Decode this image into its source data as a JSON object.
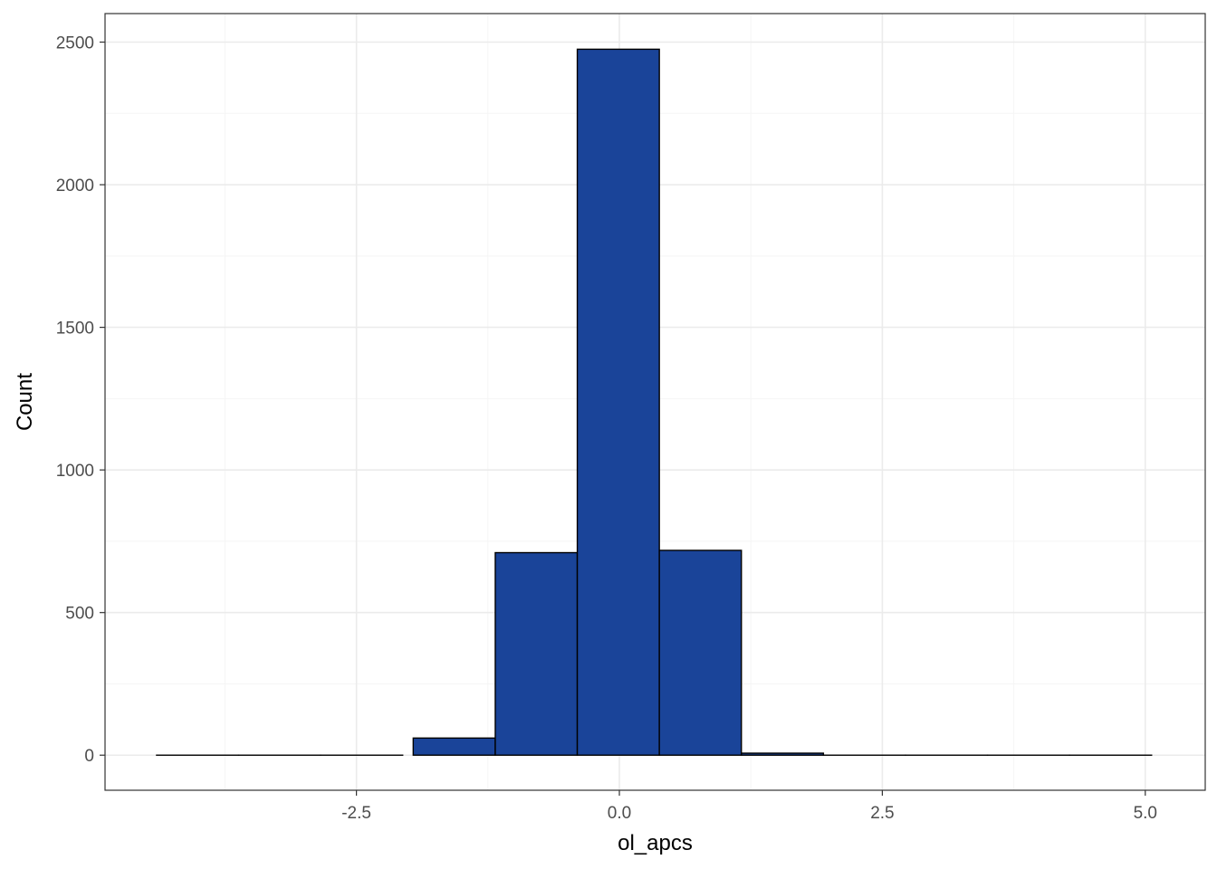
{
  "chart_data": {
    "type": "bar",
    "title": "",
    "xlabel": "ol_apcs",
    "ylabel": "Count",
    "bins": [
      {
        "x_start": -4.4,
        "x_end": -3.62,
        "count": 0
      },
      {
        "x_start": -3.62,
        "x_end": -2.84,
        "count": 0
      },
      {
        "x_start": -2.84,
        "x_end": -2.06,
        "count": 0
      },
      {
        "x_start": -1.96,
        "x_end": -1.18,
        "count": 60
      },
      {
        "x_start": -1.18,
        "x_end": -0.4,
        "count": 710
      },
      {
        "x_start": -0.4,
        "x_end": 0.38,
        "count": 2475
      },
      {
        "x_start": 0.38,
        "x_end": 1.16,
        "count": 718
      },
      {
        "x_start": 1.16,
        "x_end": 1.94,
        "count": 7
      },
      {
        "x_start": 1.94,
        "x_end": 2.72,
        "count": 0
      },
      {
        "x_start": 2.72,
        "x_end": 3.5,
        "count": 0
      },
      {
        "x_start": 3.5,
        "x_end": 4.28,
        "count": 0
      },
      {
        "x_start": 4.28,
        "x_end": 5.06,
        "count": 0
      }
    ],
    "x_ticks": [
      {
        "value": -2.5,
        "label": "-2.5"
      },
      {
        "value": 0.0,
        "label": "0.0"
      },
      {
        "value": 2.5,
        "label": "2.5"
      },
      {
        "value": 5.0,
        "label": "5.0"
      }
    ],
    "y_ticks": [
      {
        "value": 0,
        "label": "0"
      },
      {
        "value": 500,
        "label": "500"
      },
      {
        "value": 1000,
        "label": "1000"
      },
      {
        "value": 1500,
        "label": "1500"
      },
      {
        "value": 2000,
        "label": "2000"
      },
      {
        "value": 2500,
        "label": "2500"
      }
    ],
    "x_minor_ticks": [
      -3.75,
      -1.25,
      1.25,
      3.75
    ],
    "y_minor_ticks": [
      250,
      750,
      1250,
      1750,
      2250
    ],
    "xlim": [
      -4.89,
      5.57
    ],
    "ylim": [
      -123,
      2600
    ],
    "grid": true,
    "bar_fill": "#1a4499",
    "bar_stroke": "#000000",
    "panel_border": "#333333",
    "grid_major_color": "#ebebeb",
    "grid_minor_color": "#f5f5f5"
  }
}
